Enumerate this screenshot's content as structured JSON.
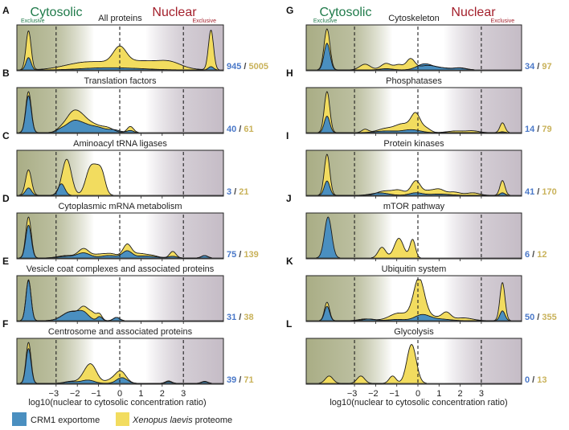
{
  "chart_data": {
    "type": "area",
    "title": "",
    "xlabel": "log10(nuclear to cytosolic concentration ratio)",
    "xticks": [
      "-3",
      "-2",
      "-1",
      "0",
      "1",
      "2",
      "3"
    ],
    "xtick_values": [
      -3,
      -2,
      -1,
      0,
      1,
      2,
      3
    ],
    "thresholds": [
      -3,
      0,
      3
    ],
    "region_labels": {
      "cytosolic": "Cytosolic",
      "nuclear": "Nuclear",
      "exclusive_left": "Exclusive",
      "exclusive_right": "Exclusive"
    },
    "colors": {
      "exportome": "#4a8fc0",
      "proteome": "#f2dc5f",
      "cytosolic_text": "#1f7a4a",
      "nuclear_text": "#a31f2b",
      "count_blue": "#4a78c8",
      "count_yellow": "#c9b25a",
      "bg_cyto": "#a9ad85",
      "bg_nuc": "#c5bcc6"
    },
    "legend": [
      {
        "name": "CRM1 exportome",
        "color": "#4a8fc0",
        "italic_part": "",
        "plain_part": "CRM1 exportome"
      },
      {
        "name": "Xenopus laevis proteome",
        "color": "#f2dc5f",
        "italic_part": "Xenopus laevis",
        "plain_part": " proteome"
      }
    ],
    "panels": [
      {
        "id": "A",
        "title": "All proteins",
        "exportome_n": "945",
        "proteome_n": "5005",
        "column": 0,
        "row": 0,
        "exclusive_labels": true,
        "proteome_peaks": [
          [
            -4.3,
            0.95,
            0.12
          ],
          [
            -1.8,
            0.12,
            0.9
          ],
          [
            0,
            0.38,
            0.3
          ],
          [
            0,
            0.15,
            1.4
          ],
          [
            1.5,
            0.12,
            1
          ],
          [
            2.4,
            0.1,
            0.5
          ],
          [
            4.3,
            0.97,
            0.12
          ]
        ],
        "exportome_peaks": [
          [
            -4.3,
            0.3,
            0.12
          ],
          [
            -1,
            0.04,
            1
          ],
          [
            0.5,
            0.03,
            1
          ],
          [
            4.3,
            0.08,
            0.12
          ]
        ]
      },
      {
        "id": "B",
        "title": "Translation factors",
        "exportome_n": "40",
        "proteome_n": "61",
        "column": 0,
        "row": 1,
        "proteome_peaks": [
          [
            -4.3,
            1.0,
            0.13
          ],
          [
            -2.2,
            0.48,
            0.35
          ],
          [
            -1.7,
            0.22,
            0.3
          ],
          [
            -1.2,
            0.15,
            0.3
          ],
          [
            -0.6,
            0.12,
            0.3
          ],
          [
            0.5,
            0.15,
            0.15
          ],
          [
            -2.8,
            0.05,
            0.2
          ]
        ],
        "exportome_peaks": [
          [
            -4.3,
            0.9,
            0.13
          ],
          [
            -2.2,
            0.26,
            0.35
          ],
          [
            -1.6,
            0.15,
            0.35
          ],
          [
            -1,
            0.1,
            0.3
          ],
          [
            -0.3,
            0.07,
            0.3
          ],
          [
            0.5,
            0.05,
            0.15
          ],
          [
            -2.8,
            0.05,
            0.2
          ]
        ]
      },
      {
        "id": "C",
        "title": "Aminoacyl tRNA ligases",
        "exportome_n": "3",
        "proteome_n": "21",
        "column": 0,
        "row": 2,
        "proteome_peaks": [
          [
            -4.3,
            0.62,
            0.14
          ],
          [
            -2.5,
            0.88,
            0.22
          ],
          [
            -1.4,
            0.6,
            0.22
          ],
          [
            -1.0,
            0.55,
            0.22
          ],
          [
            -0.8,
            0.2,
            0.15
          ]
        ],
        "exportome_peaks": [
          [
            -4.3,
            0.18,
            0.14
          ],
          [
            -2.75,
            0.28,
            0.16
          ]
        ]
      },
      {
        "id": "D",
        "title": "Cytoplasmic mRNA metabolism",
        "exportome_n": "75",
        "proteome_n": "139",
        "column": 0,
        "row": 3,
        "proteome_peaks": [
          [
            -4.3,
            1.0,
            0.13
          ],
          [
            -1.7,
            0.22,
            0.25
          ],
          [
            -2.5,
            0.06,
            0.4
          ],
          [
            -0.4,
            0.1,
            0.3
          ],
          [
            -1,
            0.08,
            0.3
          ],
          [
            0.35,
            0.32,
            0.2
          ],
          [
            0.9,
            0.1,
            0.3
          ],
          [
            1.5,
            0.06,
            0.3
          ],
          [
            2.5,
            0.16,
            0.15
          ],
          [
            4.0,
            0.06,
            0.15
          ]
        ],
        "exportome_peaks": [
          [
            -4.3,
            0.8,
            0.13
          ],
          [
            -1.7,
            0.12,
            0.3
          ],
          [
            -2.5,
            0.04,
            0.4
          ],
          [
            -0.5,
            0.06,
            0.4
          ],
          [
            0.35,
            0.16,
            0.22
          ],
          [
            1.2,
            0.05,
            0.5
          ],
          [
            2.5,
            0.04,
            0.2
          ],
          [
            4.0,
            0.06,
            0.15
          ]
        ]
      },
      {
        "id": "E",
        "title": "Vesicle coat complexes and associated proteins",
        "exportome_n": "31",
        "proteome_n": "38",
        "column": 0,
        "row": 4,
        "proteome_peaks": [
          [
            -4.3,
            1.0,
            0.12
          ],
          [
            -2.3,
            0.22,
            0.4
          ],
          [
            -1.7,
            0.26,
            0.2
          ],
          [
            -1.3,
            0.18,
            0.2
          ],
          [
            -0.95,
            0.14,
            0.12
          ],
          [
            -0.15,
            0.08,
            0.15
          ]
        ],
        "exportome_peaks": [
          [
            -4.3,
            0.98,
            0.12
          ],
          [
            -2.3,
            0.22,
            0.4
          ],
          [
            -1.7,
            0.16,
            0.25
          ],
          [
            -0.95,
            0.1,
            0.12
          ],
          [
            -0.15,
            0.08,
            0.15
          ]
        ]
      },
      {
        "id": "F",
        "title": "Centrosome and associated proteins",
        "exportome_n": "39",
        "proteome_n": "71",
        "column": 0,
        "row": 5,
        "proteome_peaks": [
          [
            -4.3,
            1.0,
            0.12
          ],
          [
            -2.3,
            0.05,
            0.3
          ],
          [
            -1.3,
            0.36,
            0.25
          ],
          [
            -1.6,
            0.2,
            0.25
          ],
          [
            0.05,
            0.28,
            0.25
          ],
          [
            -0.4,
            0.08,
            0.3
          ],
          [
            2.3,
            0.06,
            0.15
          ],
          [
            4.0,
            0.05,
            0.15
          ]
        ],
        "exportome_peaks": [
          [
            -4.3,
            0.85,
            0.12
          ],
          [
            -2.3,
            0.04,
            0.3
          ],
          [
            -1.5,
            0.08,
            0.3
          ],
          [
            0.1,
            0.14,
            0.25
          ],
          [
            2.3,
            0.04,
            0.15
          ],
          [
            4.0,
            0.04,
            0.15
          ]
        ]
      },
      {
        "id": "G",
        "title": "Cytoskeleton",
        "exportome_n": "34",
        "proteome_n": "97",
        "column": 1,
        "row": 0,
        "exclusive_labels": true,
        "proteome_peaks": [
          [
            -4.3,
            1.0,
            0.14
          ],
          [
            -2.5,
            0.14,
            0.25
          ],
          [
            -1.5,
            0.16,
            0.25
          ],
          [
            -0.9,
            0.12,
            0.2
          ],
          [
            -0.35,
            0.26,
            0.2
          ],
          [
            0.4,
            0.1,
            0.4
          ],
          [
            1.1,
            0.04,
            0.4
          ],
          [
            2.0,
            0.05,
            0.3
          ]
        ],
        "exportome_peaks": [
          [
            -4.3,
            0.65,
            0.14
          ],
          [
            -1.5,
            0.03,
            0.3
          ],
          [
            0.3,
            0.14,
            0.35
          ],
          [
            1.1,
            0.05,
            0.45
          ],
          [
            2.0,
            0.04,
            0.3
          ]
        ]
      },
      {
        "id": "H",
        "title": "Phosphatases",
        "exportome_n": "14",
        "proteome_n": "79",
        "column": 1,
        "row": 1,
        "proteome_peaks": [
          [
            -4.3,
            1.0,
            0.13
          ],
          [
            -2.5,
            0.08,
            0.15
          ],
          [
            -1.5,
            0.1,
            0.4
          ],
          [
            -0.7,
            0.2,
            0.35
          ],
          [
            -0.1,
            0.44,
            0.22
          ],
          [
            0.4,
            0.1,
            0.2
          ],
          [
            1.8,
            0.04,
            0.4
          ],
          [
            2.6,
            0.04,
            0.3
          ],
          [
            4.0,
            0.24,
            0.12
          ]
        ],
        "exportome_peaks": [
          [
            -4.3,
            0.4,
            0.13
          ],
          [
            -1.5,
            0.04,
            0.5
          ],
          [
            -0.3,
            0.07,
            0.4
          ],
          [
            4.0,
            0.02,
            0.12
          ]
        ]
      },
      {
        "id": "I",
        "title": "Protein kinases",
        "exportome_n": "41",
        "proteome_n": "170",
        "column": 1,
        "row": 2,
        "proteome_peaks": [
          [
            -4.3,
            1.0,
            0.13
          ],
          [
            -1.6,
            0.1,
            0.35
          ],
          [
            -0.9,
            0.12,
            0.3
          ],
          [
            -0.1,
            0.35,
            0.22
          ],
          [
            0.5,
            0.1,
            0.25
          ],
          [
            1.0,
            0.14,
            0.25
          ],
          [
            1.7,
            0.08,
            0.3
          ],
          [
            2.6,
            0.06,
            0.3
          ],
          [
            4.0,
            0.36,
            0.12
          ]
        ],
        "exportome_peaks": [
          [
            -4.3,
            0.35,
            0.13
          ],
          [
            -1.8,
            0.06,
            0.4
          ],
          [
            -0.1,
            0.06,
            0.3
          ],
          [
            1.0,
            0.03,
            0.5
          ],
          [
            4.0,
            0.06,
            0.12
          ]
        ]
      },
      {
        "id": "J",
        "title": "mTOR pathway",
        "exportome_n": "6",
        "proteome_n": "12",
        "column": 1,
        "row": 3,
        "proteome_peaks": [
          [
            -1.7,
            0.26,
            0.18
          ],
          [
            -0.9,
            0.48,
            0.22
          ],
          [
            -0.25,
            0.45,
            0.13
          ]
        ],
        "exportome_peaks": [
          [
            -4.25,
            1.0,
            0.17
          ]
        ]
      },
      {
        "id": "K",
        "title": "Ubiquitin system",
        "exportome_n": "50",
        "proteome_n": "355",
        "column": 1,
        "row": 4,
        "proteome_peaks": [
          [
            -4.3,
            0.45,
            0.12
          ],
          [
            -2.5,
            0.04,
            0.3
          ],
          [
            -1.0,
            0.1,
            0.35
          ],
          [
            0.05,
            0.9,
            0.25
          ],
          [
            0,
            0.15,
            0.9
          ],
          [
            1.35,
            0.16,
            0.2
          ],
          [
            2.2,
            0.06,
            0.4
          ],
          [
            4.0,
            0.93,
            0.12
          ]
        ],
        "exportome_peaks": [
          [
            -4.3,
            0.35,
            0.12
          ],
          [
            -2.3,
            0.04,
            0.3
          ],
          [
            -1.0,
            0.03,
            0.4
          ],
          [
            0.2,
            0.14,
            0.35
          ],
          [
            1.0,
            0.04,
            0.5
          ],
          [
            4.0,
            0.24,
            0.12
          ]
        ]
      },
      {
        "id": "L",
        "title": "Glycolysis",
        "exportome_n": "0",
        "proteome_n": "13",
        "column": 1,
        "row": 5,
        "proteome_peaks": [
          [
            -4.2,
            0.18,
            0.18
          ],
          [
            -2.7,
            0.18,
            0.18
          ],
          [
            -1.2,
            0.18,
            0.16
          ],
          [
            -0.3,
            0.95,
            0.22
          ]
        ],
        "exportome_peaks": []
      }
    ]
  }
}
